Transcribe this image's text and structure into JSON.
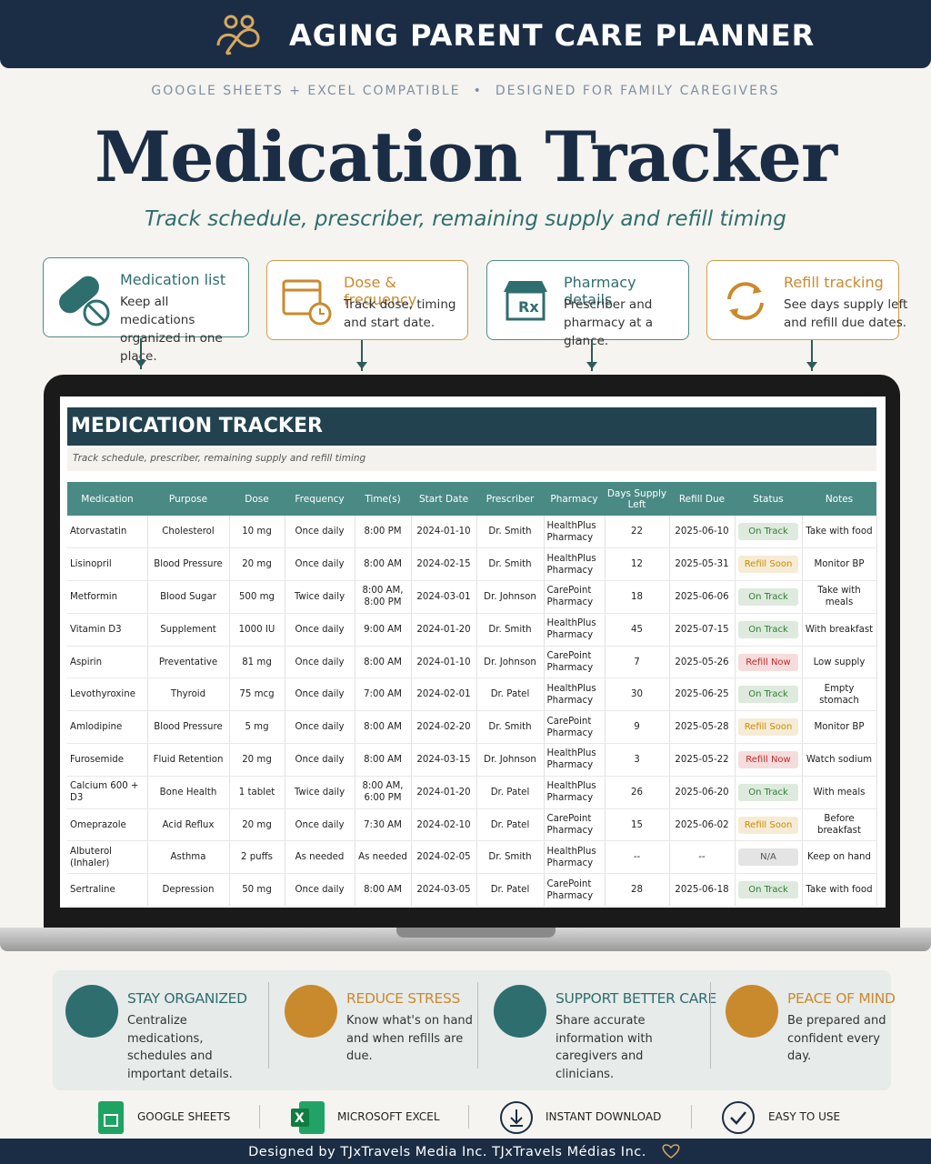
{
  "banner": {
    "title": "AGING PARENT CARE PLANNER"
  },
  "tagline": {
    "items": [
      "GOOGLE SHEETS + EXCEL COMPATIBLE",
      "DESIGNED FOR FAMILY CAREGIVERS"
    ]
  },
  "hero": {
    "title": "Medication Tracker",
    "subtitle": "Track schedule, prescriber, remaining supply and refill timing"
  },
  "features": [
    {
      "title": "Medication list",
      "text": "Keep all medications organized in one place."
    },
    {
      "title": "Dose & frequency",
      "text": "Track dose, timing and start date."
    },
    {
      "title": "Pharmacy details",
      "text": "Prescriber and pharmacy at a glance."
    },
    {
      "title": "Refill tracking",
      "text": "See days supply left and refill due dates."
    }
  ],
  "sheet": {
    "title": "MEDICATION TRACKER",
    "subtitle": "Track schedule, prescriber, remaining supply and refill timing",
    "columns": [
      "Medication",
      "Purpose",
      "Dose",
      "Frequency",
      "Time(s)",
      "Start Date",
      "Prescriber",
      "Pharmacy",
      "Days Supply Left",
      "Refill Due",
      "Status",
      "Notes"
    ],
    "rows": [
      [
        "Atorvastatin",
        "Cholesterol",
        "10 mg",
        "Once daily",
        "8:00 PM",
        "2024-01-10",
        "Dr. Smith",
        "HealthPlus Pharmacy",
        22,
        "2025-06-10",
        "On Track",
        "Take with food"
      ],
      [
        "Lisinopril",
        "Blood Pressure",
        "20 mg",
        "Once daily",
        "8:00 AM",
        "2024-02-15",
        "Dr. Smith",
        "HealthPlus Pharmacy",
        12,
        "2025-05-31",
        "Refill Soon",
        "Monitor BP"
      ],
      [
        "Metformin",
        "Blood Sugar",
        "500 mg",
        "Twice daily",
        "8:00 AM, 8:00 PM",
        "2024-03-01",
        "Dr. Johnson",
        "CarePoint Pharmacy",
        18,
        "2025-06-06",
        "On Track",
        "Take with meals"
      ],
      [
        "Vitamin D3",
        "Supplement",
        "1000 IU",
        "Once daily",
        "9:00 AM",
        "2024-01-20",
        "Dr. Smith",
        "HealthPlus Pharmacy",
        45,
        "2025-07-15",
        "On Track",
        "With breakfast"
      ],
      [
        "Aspirin",
        "Preventative",
        "81 mg",
        "Once daily",
        "8:00 AM",
        "2024-01-10",
        "Dr. Johnson",
        "CarePoint Pharmacy",
        7,
        "2025-05-26",
        "Refill Now",
        "Low supply"
      ],
      [
        "Levothyroxine",
        "Thyroid",
        "75 mcg",
        "Once daily",
        "7:00 AM",
        "2024-02-01",
        "Dr. Patel",
        "HealthPlus Pharmacy",
        30,
        "2025-06-25",
        "On Track",
        "Empty stomach"
      ],
      [
        "Amlodipine",
        "Blood Pressure",
        "5 mg",
        "Once daily",
        "8:00 AM",
        "2024-02-20",
        "Dr. Smith",
        "CarePoint Pharmacy",
        9,
        "2025-05-28",
        "Refill Soon",
        "Monitor BP"
      ],
      [
        "Furosemide",
        "Fluid Retention",
        "20 mg",
        "Once daily",
        "8:00 AM",
        "2024-03-15",
        "Dr. Johnson",
        "HealthPlus Pharmacy",
        3,
        "2025-05-22",
        "Refill Now",
        "Watch sodium"
      ],
      [
        "Calcium 600 + D3",
        "Bone Health",
        "1 tablet",
        "Twice daily",
        "8:00 AM, 6:00 PM",
        "2024-01-20",
        "Dr. Patel",
        "HealthPlus Pharmacy",
        26,
        "2025-06-20",
        "On Track",
        "With meals"
      ],
      [
        "Omeprazole",
        "Acid Reflux",
        "20 mg",
        "Once daily",
        "7:30 AM",
        "2024-02-10",
        "Dr. Patel",
        "CarePoint Pharmacy",
        15,
        "2025-06-02",
        "Refill Soon",
        "Before breakfast"
      ],
      [
        "Albuterol (Inhaler)",
        "Asthma",
        "2 puffs",
        "As needed",
        "As needed",
        "2024-02-05",
        "Dr. Smith",
        "HealthPlus Pharmacy",
        "--",
        "--",
        "N/A",
        "Keep on hand"
      ],
      [
        "Sertraline",
        "Depression",
        "50 mg",
        "Once daily",
        "8:00 AM",
        "2024-03-05",
        "Dr. Patel",
        "CarePoint Pharmacy",
        28,
        "2025-06-18",
        "On Track",
        "Take with food"
      ]
    ],
    "status_colors": [
      "#2e7d32",
      "#c98a00",
      "#2e7d32",
      "#2e7d32",
      "#c62828",
      "#2e7d32",
      "#c98a00",
      "#c62828",
      "#2e7d32",
      "#c98a00",
      "#555555",
      "#2e7d32"
    ]
  },
  "benefits": [
    {
      "title": "STAY ORGANIZED",
      "text": "Centralize medications, schedules and important details."
    },
    {
      "title": "REDUCE STRESS",
      "text": "Know what's on hand and when refills are due."
    },
    {
      "title": "SUPPORT BETTER CARE",
      "text": "Share accurate information with caregivers and clinicians."
    },
    {
      "title": "PEACE OF MIND",
      "text": "Be prepared and confident every day."
    }
  ],
  "badges": [
    "GOOGLE SHEETS",
    "MICROSOFT EXCEL",
    "INSTANT DOWNLOAD",
    "EASY TO USE"
  ],
  "footer": {
    "credit": "Designed by TJxTravels Media Inc. TJxTravels Médias Inc."
  }
}
